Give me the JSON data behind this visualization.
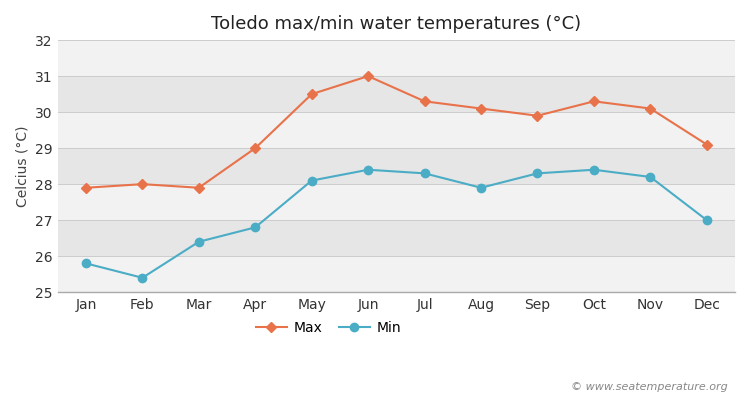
{
  "title": "Toledo max/min water temperatures (°C)",
  "ylabel": "Celcius (°C)",
  "months": [
    "Jan",
    "Feb",
    "Mar",
    "Apr",
    "May",
    "Jun",
    "Jul",
    "Aug",
    "Sep",
    "Oct",
    "Nov",
    "Dec"
  ],
  "max_temps": [
    27.9,
    28.0,
    27.9,
    29.0,
    30.5,
    31.0,
    30.3,
    30.1,
    29.9,
    30.3,
    30.1,
    29.1
  ],
  "min_temps": [
    25.8,
    25.4,
    26.4,
    26.8,
    28.1,
    28.4,
    28.3,
    27.9,
    28.3,
    28.4,
    28.2,
    27.0
  ],
  "max_color": "#e8724a",
  "min_color": "#4bacc6",
  "fig_bg_color": "#ffffff",
  "band_light": "#f2f2f2",
  "band_dark": "#e6e6e6",
  "grid_line_color": "#cccccc",
  "ylim": [
    25,
    32
  ],
  "yticks": [
    25,
    26,
    27,
    28,
    29,
    30,
    31,
    32
  ],
  "copyright_text": "© www.seatemperature.org",
  "title_fontsize": 13,
  "label_fontsize": 10,
  "tick_fontsize": 10
}
